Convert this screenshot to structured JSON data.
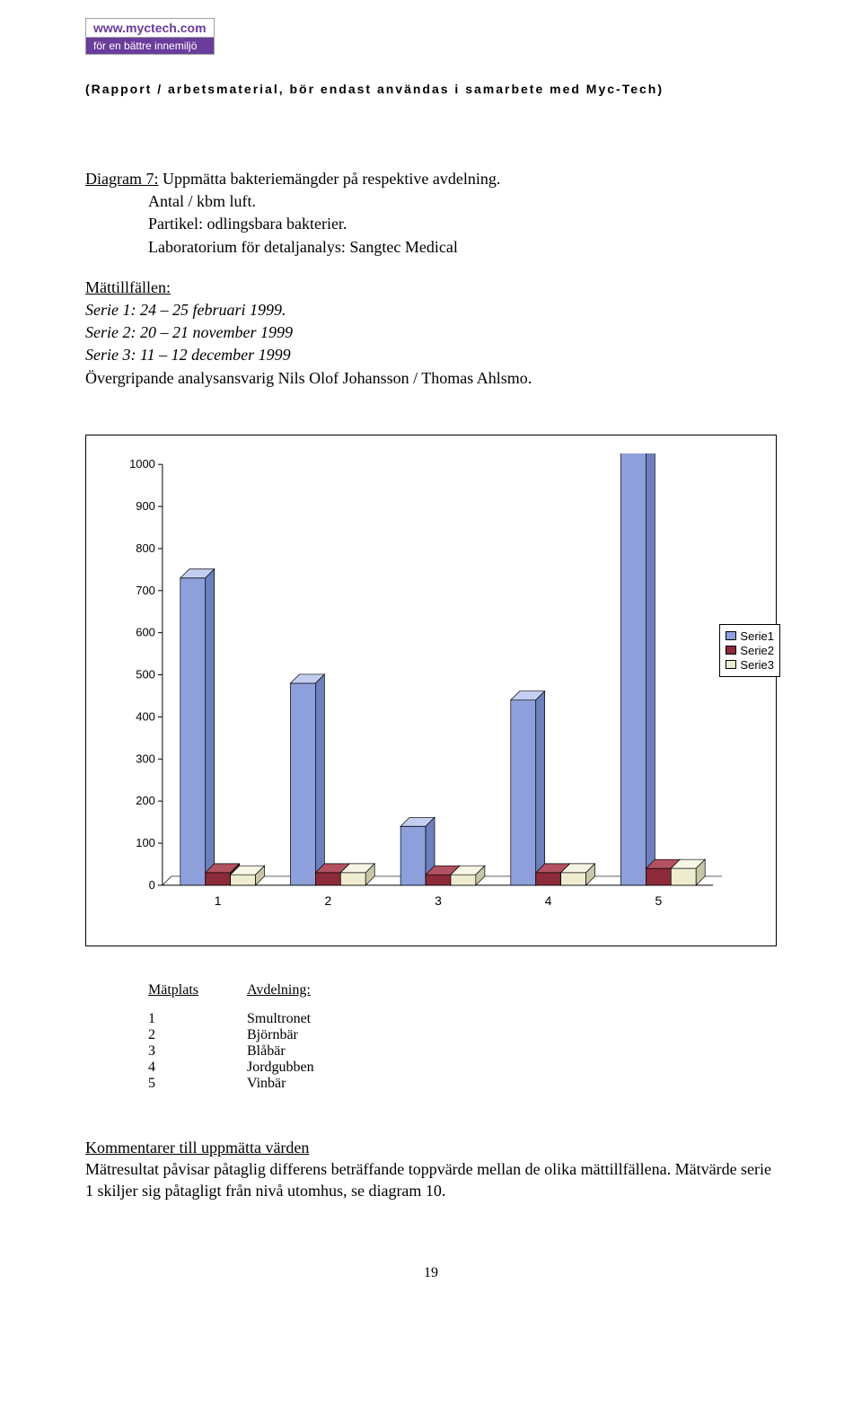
{
  "logo": {
    "top": "www.myctech.com",
    "bot": "för en bättre innemiljö"
  },
  "report_line": "(Rapport / arbetsmaterial, bör endast användas i samarbete med Myc-Tech)",
  "heading": {
    "diagram": "Diagram 7:",
    "title": "Uppmätta bakteriemängder på respektive avdelning.",
    "l1": "Antal / kbm luft.",
    "l2": "Partikel:  odlingsbara bakterier.",
    "l3": "Laboratorium för detaljanalys:  Sangtec Medical"
  },
  "occasions": {
    "head": "Mättillfällen:",
    "s1": "Serie 1: 24 – 25 februari 1999.",
    "s2": "Serie 2: 20 – 21 november 1999",
    "s3": "Serie 3: 11 – 12 december 1999",
    "resp": "Övergripande analysansvarig Nils Olof Johansson / Thomas Ahlsmo."
  },
  "chart": {
    "type": "bar3d",
    "categories": [
      "1",
      "2",
      "3",
      "4",
      "5"
    ],
    "series": [
      {
        "name": "Serie1",
        "color": "#8ea0dc",
        "top": "#c4cef0",
        "side": "#6d7fbc",
        "values": [
          730,
          480,
          140,
          440,
          1060
        ]
      },
      {
        "name": "Serie2",
        "color": "#8c2a3a",
        "top": "#b25260",
        "side": "#5e1a26",
        "values": [
          30,
          30,
          25,
          30,
          40
        ]
      },
      {
        "name": "Serie3",
        "color": "#eeeccf",
        "top": "#f6f5e6",
        "side": "#c8c6a8",
        "values": [
          25,
          30,
          25,
          30,
          40
        ]
      }
    ],
    "ylim": [
      0,
      1000
    ],
    "ytick_step": 100,
    "yticks": [
      0,
      100,
      200,
      300,
      400,
      500,
      600,
      700,
      800,
      900,
      1000
    ],
    "axis_color": "#000000",
    "grid_color": "#000000",
    "tick_font": 13
  },
  "legend": {
    "items": [
      {
        "label": "Serie1",
        "color": "#8ea0dc"
      },
      {
        "label": "Serie2",
        "color": "#8c2a3a"
      },
      {
        "label": "Serie3",
        "color": "#eeeccf"
      }
    ]
  },
  "table": {
    "h1": "Mätplats",
    "h2": "Avdelning:",
    "rows": [
      {
        "n": "1",
        "v": "Smultronet"
      },
      {
        "n": "2",
        "v": "Björnbär"
      },
      {
        "n": "3",
        "v": "Blåbär"
      },
      {
        "n": "4",
        "v": "Jordgubben"
      },
      {
        "n": "5",
        "v": "Vinbär"
      }
    ]
  },
  "comments": {
    "head": "Kommentarer till uppmätta värden",
    "body": "Mätresultat påvisar påtaglig differens beträffande toppvärde mellan de olika mättillfällena. Mätvärde serie 1 skiljer sig påtagligt från nivå utomhus, se diagram 10."
  },
  "page_number": "19"
}
